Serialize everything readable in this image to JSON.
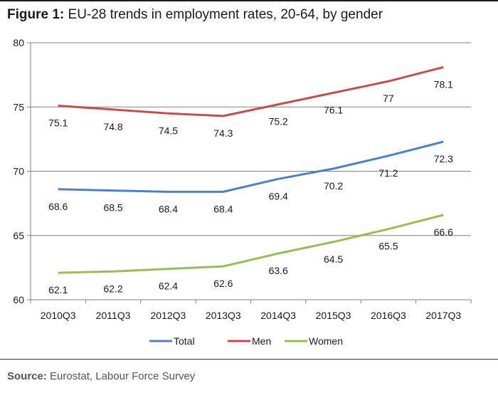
{
  "figure": {
    "label": "Figure 1",
    "title": "EU-28 trends in employment rates, 20-64, by gender"
  },
  "source": {
    "label": "Source:",
    "text": "Eurostat, Labour Force Survey"
  },
  "chart_data": {
    "type": "line",
    "title": "",
    "xlabel": "",
    "ylabel": "",
    "categories": [
      "2010Q3",
      "2011Q3",
      "2012Q3",
      "2013Q3",
      "2014Q3",
      "2015Q3",
      "2016Q3",
      "2017Q3"
    ],
    "ylim": [
      60,
      80
    ],
    "yticks": [
      60,
      65,
      70,
      75,
      80
    ],
    "grid": true,
    "legend": "bottom",
    "series": [
      {
        "name": "Total",
        "color": "#4f81bd",
        "values": [
          68.6,
          68.5,
          68.4,
          68.4,
          69.4,
          70.2,
          71.2,
          72.3
        ]
      },
      {
        "name": "Men",
        "color": "#c0504d",
        "values": [
          75.1,
          74.8,
          74.5,
          74.3,
          75.2,
          76.1,
          77,
          78.1
        ]
      },
      {
        "name": "Women",
        "color": "#9bbb59",
        "values": [
          62.1,
          62.2,
          62.4,
          62.6,
          63.6,
          64.5,
          65.5,
          66.6
        ]
      }
    ]
  }
}
